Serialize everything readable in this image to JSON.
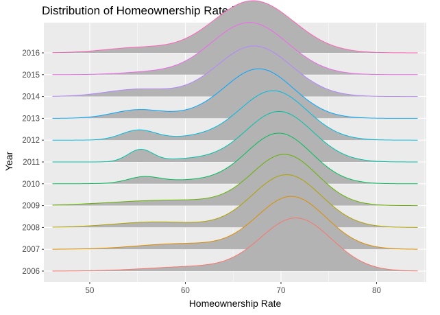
{
  "chart_data": {
    "type": "ridgeline",
    "title": "Distribution of Homeownership Rate by Year",
    "xlabel": "Homeownership Rate",
    "ylabel": "Year",
    "xlim": [
      45.2,
      85.2
    ],
    "x_ticks": [
      50,
      60,
      70,
      80
    ],
    "x_range_drawn": [
      46.1,
      84.3
    ],
    "fill_color": "#B3B3B3",
    "panel_background": "#EBEBEB",
    "grid_color": "#FFFFFF",
    "grid": true,
    "legend": "none",
    "series": [
      {
        "name": "2006",
        "color": "#F8766D",
        "components": [
          {
            "mu": 71.6,
            "sigma": 3.7,
            "w": 0.96
          },
          {
            "mu": 61.0,
            "sigma": 5.0,
            "w": 0.08
          }
        ]
      },
      {
        "name": "2007",
        "color": "#DB8E00",
        "components": [
          {
            "mu": 71.1,
            "sigma": 3.6,
            "w": 0.96
          },
          {
            "mu": 59.5,
            "sigma": 4.5,
            "w": 0.1
          }
        ]
      },
      {
        "name": "2008",
        "color": "#AEA200",
        "components": [
          {
            "mu": 70.6,
            "sigma": 3.6,
            "w": 0.96
          },
          {
            "mu": 57.0,
            "sigma": 4.5,
            "w": 0.1
          }
        ]
      },
      {
        "name": "2009",
        "color": "#64B200",
        "components": [
          {
            "mu": 70.4,
            "sigma": 3.4,
            "w": 0.92
          },
          {
            "mu": 58.5,
            "sigma": 6.0,
            "w": 0.1
          }
        ]
      },
      {
        "name": "2010",
        "color": "#00BD5C",
        "components": [
          {
            "mu": 69.8,
            "sigma": 3.4,
            "w": 0.92
          },
          {
            "mu": 55.6,
            "sigma": 1.6,
            "w": 0.1
          },
          {
            "mu": 60.0,
            "sigma": 4.0,
            "w": 0.06
          }
        ]
      },
      {
        "name": "2011",
        "color": "#00C1A7",
        "components": [
          {
            "mu": 69.8,
            "sigma": 3.5,
            "w": 0.92
          },
          {
            "mu": 55.3,
            "sigma": 1.3,
            "w": 0.22
          },
          {
            "mu": 60.5,
            "sigma": 3.0,
            "w": 0.05
          }
        ]
      },
      {
        "name": "2012",
        "color": "#00BADE",
        "components": [
          {
            "mu": 69.2,
            "sigma": 3.5,
            "w": 0.9
          },
          {
            "mu": 55.1,
            "sigma": 1.8,
            "w": 0.18
          },
          {
            "mu": 61.0,
            "sigma": 3.0,
            "w": 0.05
          }
        ]
      },
      {
        "name": "2013",
        "color": "#00A6FF",
        "components": [
          {
            "mu": 67.7,
            "sigma": 3.6,
            "w": 0.9
          },
          {
            "mu": 55.0,
            "sigma": 2.6,
            "w": 0.15
          },
          {
            "mu": 60.5,
            "sigma": 3.0,
            "w": 0.04
          }
        ]
      },
      {
        "name": "2014",
        "color": "#B385FF",
        "components": [
          {
            "mu": 67.2,
            "sigma": 3.9,
            "w": 0.92
          },
          {
            "mu": 55.0,
            "sigma": 3.3,
            "w": 0.13
          }
        ]
      },
      {
        "name": "2015",
        "color": "#EF67EB",
        "components": [
          {
            "mu": 66.7,
            "sigma": 4.0,
            "w": 0.95
          },
          {
            "mu": 56.0,
            "sigma": 3.0,
            "w": 0.04
          }
        ]
      },
      {
        "name": "2016",
        "color": "#FF63B6",
        "components": [
          {
            "mu": 67.1,
            "sigma": 4.2,
            "w": 0.95
          },
          {
            "mu": 55.0,
            "sigma": 3.5,
            "w": 0.09
          }
        ]
      }
    ]
  }
}
